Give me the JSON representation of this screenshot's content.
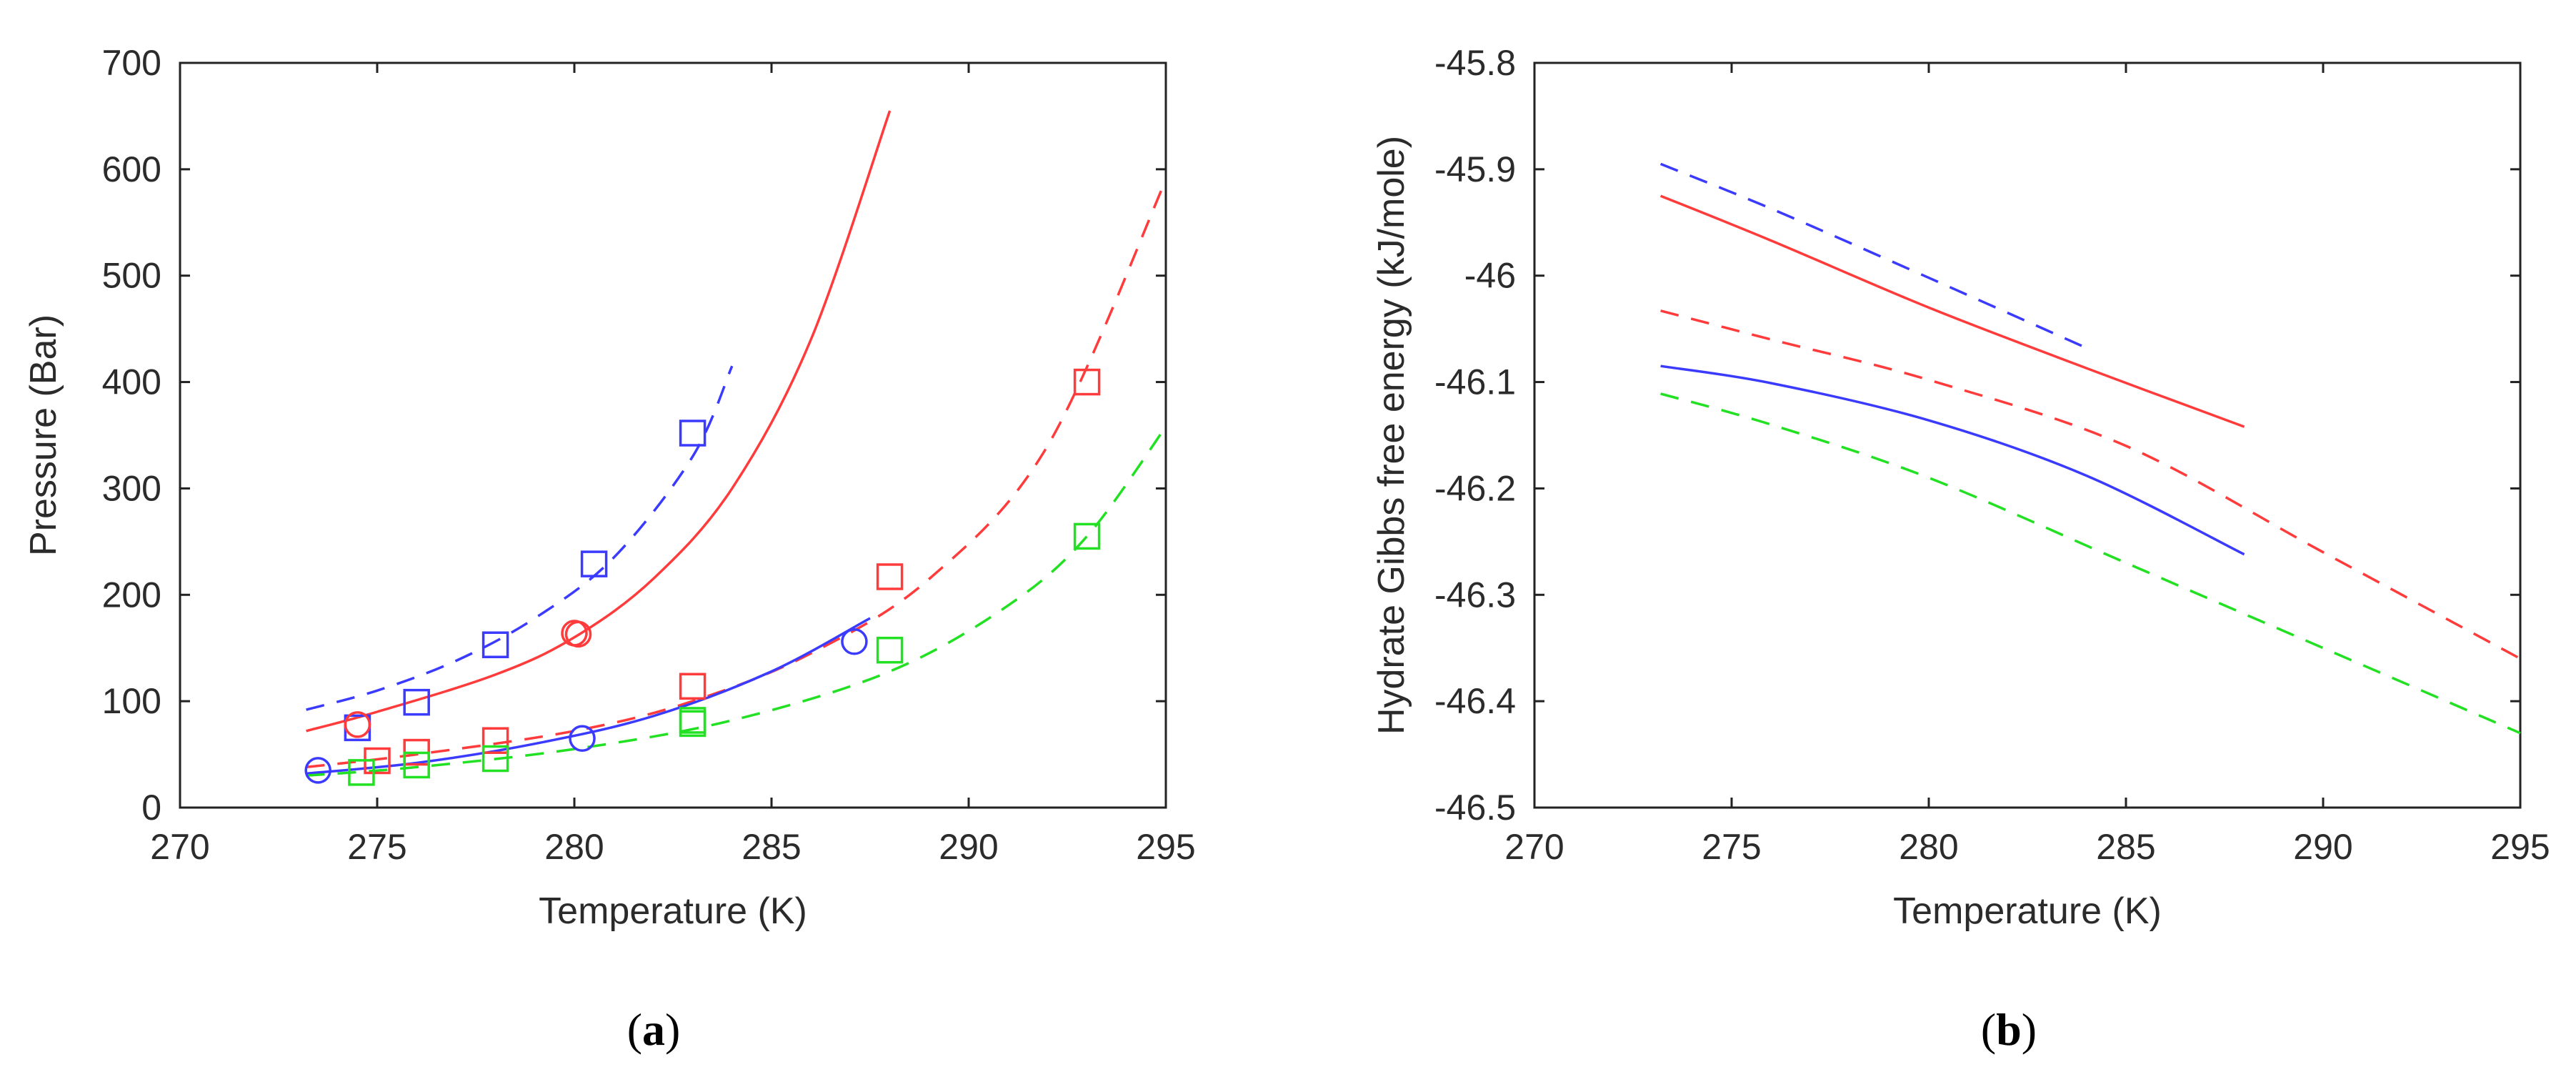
{
  "chart_data": [
    {
      "type": "line",
      "panel_label": "a",
      "title": "",
      "xlabel": "Temperature (K)",
      "ylabel": "Pressure (Bar)",
      "xlim": [
        270,
        295
      ],
      "ylim": [
        0,
        700
      ],
      "xticks": [
        270,
        275,
        280,
        285,
        290,
        295
      ],
      "yticks": [
        0,
        100,
        200,
        300,
        400,
        500,
        600,
        700
      ],
      "grid": false,
      "colors": {
        "blue": "#3b3bff",
        "red": "#ff3b3b",
        "green": "#22e022"
      },
      "series": [
        {
          "name": "blue-dashed-model",
          "color": "blue",
          "style": "dashed",
          "x": [
            273.2,
            275,
            277,
            279,
            281,
            283,
            284
          ],
          "y": [
            92,
            110,
            138,
            178,
            235,
            330,
            415
          ]
        },
        {
          "name": "red-solid-model",
          "color": "red",
          "style": "solid",
          "x": [
            273.2,
            275,
            278,
            280,
            282,
            284,
            286,
            288
          ],
          "y": [
            72,
            90,
            125,
            160,
            215,
            300,
            440,
            655
          ]
        },
        {
          "name": "red-dashed-model",
          "color": "red",
          "style": "dashed",
          "x": [
            273.2,
            276,
            280,
            283,
            286,
            289,
            292,
            295
          ],
          "y": [
            38,
            50,
            72,
            100,
            145,
            215,
            340,
            590
          ]
        },
        {
          "name": "blue-solid-model",
          "color": "blue",
          "style": "solid",
          "x": [
            273.2,
            276,
            279,
            282,
            285,
            287.5
          ],
          "y": [
            32,
            42,
            60,
            86,
            128,
            178
          ]
        },
        {
          "name": "green-dashed-model",
          "color": "green",
          "style": "dashed",
          "x": [
            273.2,
            276,
            280,
            284,
            288,
            291,
            293,
            295
          ],
          "y": [
            30,
            38,
            55,
            82,
            128,
            190,
            255,
            358
          ]
        }
      ],
      "points": [
        {
          "color": "blue",
          "marker": "square",
          "x": [
            274.5,
            276,
            278,
            280.5,
            283
          ],
          "y": [
            75,
            99,
            153,
            229,
            352
          ]
        },
        {
          "color": "red",
          "marker": "circle",
          "x": [
            274.5,
            280,
            280.1
          ],
          "y": [
            78,
            164,
            163
          ]
        },
        {
          "color": "red",
          "marker": "square",
          "x": [
            275,
            276,
            278,
            283,
            288,
            293
          ],
          "y": [
            44,
            52,
            63,
            114,
            217,
            400
          ]
        },
        {
          "color": "blue",
          "marker": "circle",
          "x": [
            273.5,
            280.2,
            287.1
          ],
          "y": [
            35,
            65,
            156
          ]
        },
        {
          "color": "green",
          "marker": "square",
          "x": [
            274.6,
            276,
            278,
            283,
            283,
            288,
            293
          ],
          "y": [
            33,
            40,
            46,
            79,
            82,
            148,
            255
          ]
        }
      ]
    },
    {
      "type": "line",
      "panel_label": "b",
      "title": "",
      "xlabel": "Temperature (K)",
      "ylabel": "Hydrate Gibbs free energy (kJ/mole)",
      "xlim": [
        270,
        295
      ],
      "ylim": [
        -46.5,
        -45.8
      ],
      "xticks": [
        270,
        275,
        280,
        285,
        290,
        295
      ],
      "yticks": [
        -46.5,
        -46.4,
        -46.3,
        -46.2,
        -46.1,
        -46,
        -45.9,
        -45.8
      ],
      "ytick_labels": [
        "-46.5",
        "-46.4",
        "-46.3",
        "-46.2",
        "-46.1",
        "-46",
        "-45.9",
        "-45.8"
      ],
      "grid": false,
      "colors": {
        "blue": "#3b3bff",
        "red": "#ff3b3b",
        "green": "#22e022"
      },
      "series": [
        {
          "name": "blue-dashed",
          "color": "blue",
          "style": "dashed",
          "x": [
            273.2,
            276,
            280,
            284
          ],
          "y": [
            -45.895,
            -45.937,
            -46.002,
            -46.068
          ]
        },
        {
          "name": "red-solid",
          "color": "red",
          "style": "solid",
          "x": [
            273.2,
            276,
            280,
            284,
            288
          ],
          "y": [
            -45.925,
            -45.967,
            -46.03,
            -46.087,
            -46.142
          ]
        },
        {
          "name": "red-dashed",
          "color": "red",
          "style": "dashed",
          "x": [
            273.2,
            276,
            280,
            285,
            290,
            295
          ],
          "y": [
            -46.033,
            -46.06,
            -46.098,
            -46.16,
            -46.26,
            -46.36
          ]
        },
        {
          "name": "blue-solid",
          "color": "blue",
          "style": "solid",
          "x": [
            273.2,
            276,
            280,
            284,
            288
          ],
          "y": [
            -46.085,
            -46.101,
            -46.136,
            -46.188,
            -46.262
          ]
        },
        {
          "name": "green-dashed",
          "color": "green",
          "style": "dashed",
          "x": [
            273.2,
            276,
            280,
            285,
            290,
            295
          ],
          "y": [
            -46.111,
            -46.14,
            -46.19,
            -46.27,
            -46.35,
            -46.43
          ]
        }
      ],
      "points": []
    }
  ]
}
